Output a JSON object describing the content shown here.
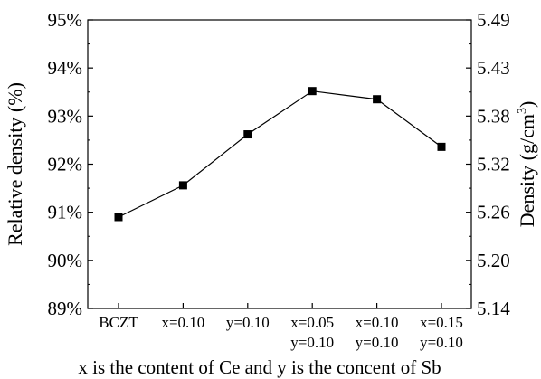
{
  "chart_data": {
    "type": "line",
    "categories": [
      [
        "BCZT"
      ],
      [
        "x=0.10"
      ],
      [
        "y=0.10"
      ],
      [
        "x=0.05",
        "y=0.10"
      ],
      [
        "x=0.10",
        "y=0.10"
      ],
      [
        "x=0.15",
        "y=0.10"
      ]
    ],
    "series": [
      {
        "values": [
          90.9,
          91.56,
          92.62,
          93.52,
          93.35,
          92.36
        ],
        "marker": "square",
        "color": "#000000"
      }
    ],
    "ylabel": "Relative density (%)",
    "ylim": [
      89,
      95
    ],
    "yticks": [
      "89%",
      "90%",
      "91%",
      "92%",
      "93%",
      "94%",
      "95%"
    ],
    "y2label": "Density (g/cm³)",
    "y2label_base": "Density (g/cm",
    "y2label_sup": "3",
    "y2label_close": ")",
    "y2ticks": [
      "5.14",
      "5.20",
      "5.26",
      "5.32",
      "5.38",
      "5.43",
      "5.49"
    ],
    "xlabel": "x is the content of Ce and y is the concent of Sb",
    "grid": false
  }
}
